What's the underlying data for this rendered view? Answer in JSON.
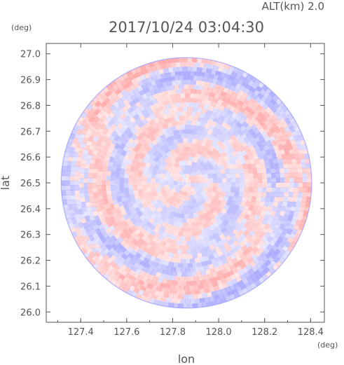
{
  "chart_data": {
    "type": "heatmap",
    "subtitle": "ALT(km) 2.0",
    "title": "2017/10/24 03:04:30",
    "xlabel": "lon",
    "ylabel": "lat",
    "x_unit": "(deg)",
    "y_unit": "(deg)",
    "xlim": [
      127.25,
      128.46
    ],
    "ylim": [
      25.96,
      27.04
    ],
    "center": {
      "lon": 127.86,
      "lat": 26.5
    },
    "radius_deg": 0.545,
    "x_ticks": [
      "127.4",
      "127.6",
      "127.8",
      "128.0",
      "128.2",
      "128.4"
    ],
    "x_tick_values": [
      127.4,
      127.6,
      127.8,
      128.0,
      128.2,
      128.4
    ],
    "y_ticks": [
      "26.0",
      "26.1",
      "26.2",
      "26.3",
      "26.4",
      "26.5",
      "26.6",
      "26.7",
      "26.8",
      "26.9",
      "27.0"
    ],
    "y_tick_values": [
      26.0,
      26.1,
      26.2,
      26.3,
      26.4,
      26.5,
      26.6,
      26.7,
      26.8,
      26.9,
      27.0
    ],
    "colors": {
      "positive": "#ff9e9e",
      "negative": "#9e9eff",
      "neutral": "#ffffff",
      "axis": "#555555"
    },
    "grid": false,
    "legend": "none"
  }
}
